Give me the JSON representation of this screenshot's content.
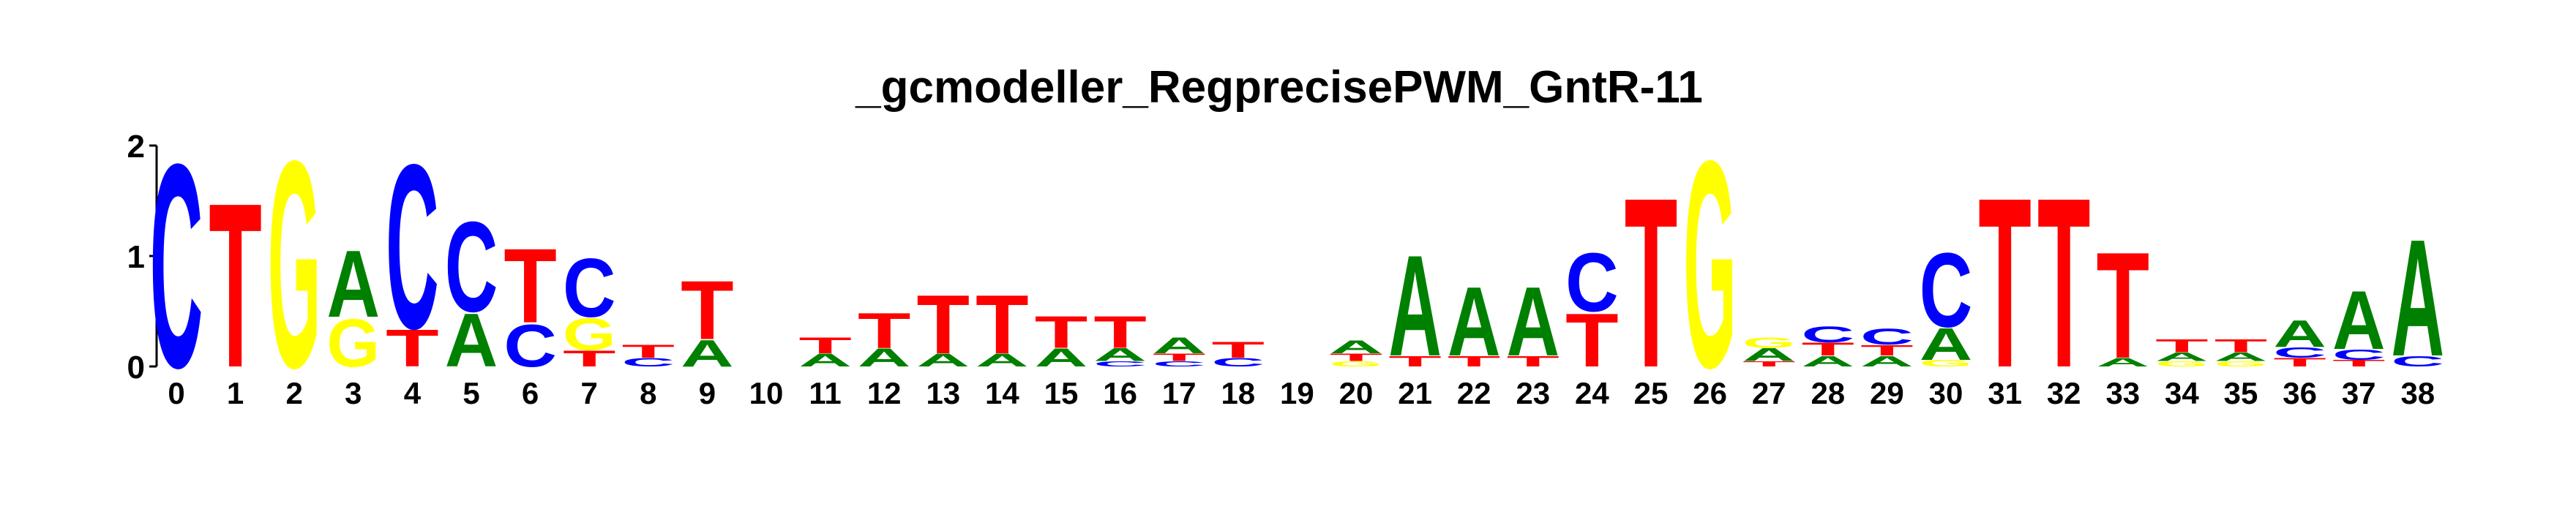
{
  "chart_data": {
    "type": "logo",
    "title": "_gcmodeller_RegprecisePWM_GntR-11",
    "categories": [
      "0",
      "1",
      "2",
      "3",
      "4",
      "5",
      "6",
      "7",
      "8",
      "9",
      "10",
      "11",
      "12",
      "13",
      "14",
      "15",
      "16",
      "17",
      "18",
      "19",
      "20",
      "21",
      "22",
      "23",
      "24",
      "25",
      "26",
      "27",
      "28",
      "29",
      "30",
      "31",
      "32",
      "33",
      "34",
      "35",
      "36",
      "37",
      "38"
    ],
    "colors": {
      "A": "#008000",
      "C": "#0000ff",
      "G": "#ffff00",
      "T": "#ff0000"
    },
    "ylim": [
      0,
      2
    ],
    "yticks": [
      0,
      1,
      2
    ],
    "stacks": [
      [
        {
          "letter": "C",
          "value": 1.92
        }
      ],
      [
        {
          "letter": "T",
          "value": 1.55
        }
      ],
      [
        {
          "letter": "G",
          "value": 1.95
        }
      ],
      [
        {
          "letter": "G",
          "value": 0.45
        },
        {
          "letter": "A",
          "value": 0.63
        }
      ],
      [
        {
          "letter": "T",
          "value": 0.35
        },
        {
          "letter": "C",
          "value": 1.55
        }
      ],
      [
        {
          "letter": "A",
          "value": 0.5
        },
        {
          "letter": "C",
          "value": 0.85
        }
      ],
      [
        {
          "letter": "C",
          "value": 0.4
        },
        {
          "letter": "T",
          "value": 0.7
        }
      ],
      [
        {
          "letter": "T",
          "value": 0.15
        },
        {
          "letter": "G",
          "value": 0.3
        },
        {
          "letter": "C",
          "value": 0.55
        }
      ],
      [
        {
          "letter": "C",
          "value": 0.08
        },
        {
          "letter": "T",
          "value": 0.12
        }
      ],
      [
        {
          "letter": "A",
          "value": 0.25
        },
        {
          "letter": "T",
          "value": 0.55
        }
      ],
      [],
      [
        {
          "letter": "A",
          "value": 0.12
        },
        {
          "letter": "T",
          "value": 0.15
        }
      ],
      [
        {
          "letter": "A",
          "value": 0.17
        },
        {
          "letter": "T",
          "value": 0.33
        }
      ],
      [
        {
          "letter": "A",
          "value": 0.12
        },
        {
          "letter": "T",
          "value": 0.55
        }
      ],
      [
        {
          "letter": "A",
          "value": 0.12
        },
        {
          "letter": "T",
          "value": 0.55
        }
      ],
      [
        {
          "letter": "A",
          "value": 0.17
        },
        {
          "letter": "T",
          "value": 0.3
        }
      ],
      [
        {
          "letter": "C",
          "value": 0.05
        },
        {
          "letter": "A",
          "value": 0.12
        },
        {
          "letter": "T",
          "value": 0.3
        }
      ],
      [
        {
          "letter": "C",
          "value": 0.05
        },
        {
          "letter": "T",
          "value": 0.07
        },
        {
          "letter": "A",
          "value": 0.15
        }
      ],
      [
        {
          "letter": "C",
          "value": 0.08
        },
        {
          "letter": "T",
          "value": 0.15
        }
      ],
      [],
      [
        {
          "letter": "G",
          "value": 0.05
        },
        {
          "letter": "T",
          "value": 0.07
        },
        {
          "letter": "A",
          "value": 0.12
        }
      ],
      [
        {
          "letter": "T",
          "value": 0.1
        },
        {
          "letter": "A",
          "value": 0.95
        }
      ],
      [
        {
          "letter": "T",
          "value": 0.1
        },
        {
          "letter": "A",
          "value": 0.65
        }
      ],
      [
        {
          "letter": "T",
          "value": 0.1
        },
        {
          "letter": "A",
          "value": 0.65
        }
      ],
      [
        {
          "letter": "T",
          "value": 0.5
        },
        {
          "letter": "C",
          "value": 0.55
        }
      ],
      [
        {
          "letter": "T",
          "value": 1.6
        }
      ],
      [
        {
          "letter": "G",
          "value": 1.95
        }
      ],
      [
        {
          "letter": "T",
          "value": 0.05
        },
        {
          "letter": "A",
          "value": 0.12
        },
        {
          "letter": "G",
          "value": 0.1
        }
      ],
      [
        {
          "letter": "A",
          "value": 0.1
        },
        {
          "letter": "T",
          "value": 0.12
        },
        {
          "letter": "C",
          "value": 0.15
        }
      ],
      [
        {
          "letter": "A",
          "value": 0.1
        },
        {
          "letter": "T",
          "value": 0.1
        },
        {
          "letter": "C",
          "value": 0.15
        }
      ],
      [
        {
          "letter": "G",
          "value": 0.06
        },
        {
          "letter": "A",
          "value": 0.3
        },
        {
          "letter": "C",
          "value": 0.7
        }
      ],
      [
        {
          "letter": "T",
          "value": 1.6
        }
      ],
      [
        {
          "letter": "T",
          "value": 1.6
        }
      ],
      [
        {
          "letter": "A",
          "value": 0.08
        },
        {
          "letter": "T",
          "value": 1.0
        }
      ],
      [
        {
          "letter": "G",
          "value": 0.05
        },
        {
          "letter": "A",
          "value": 0.08
        },
        {
          "letter": "T",
          "value": 0.12
        }
      ],
      [
        {
          "letter": "G",
          "value": 0.05
        },
        {
          "letter": "A",
          "value": 0.08
        },
        {
          "letter": "T",
          "value": 0.12
        }
      ],
      [
        {
          "letter": "T",
          "value": 0.08
        },
        {
          "letter": "C",
          "value": 0.1
        },
        {
          "letter": "A",
          "value": 0.25
        }
      ],
      [
        {
          "letter": "T",
          "value": 0.06
        },
        {
          "letter": "C",
          "value": 0.1
        },
        {
          "letter": "A",
          "value": 0.55
        }
      ],
      [
        {
          "letter": "C",
          "value": 0.1
        },
        {
          "letter": "A",
          "value": 1.1
        }
      ]
    ]
  }
}
